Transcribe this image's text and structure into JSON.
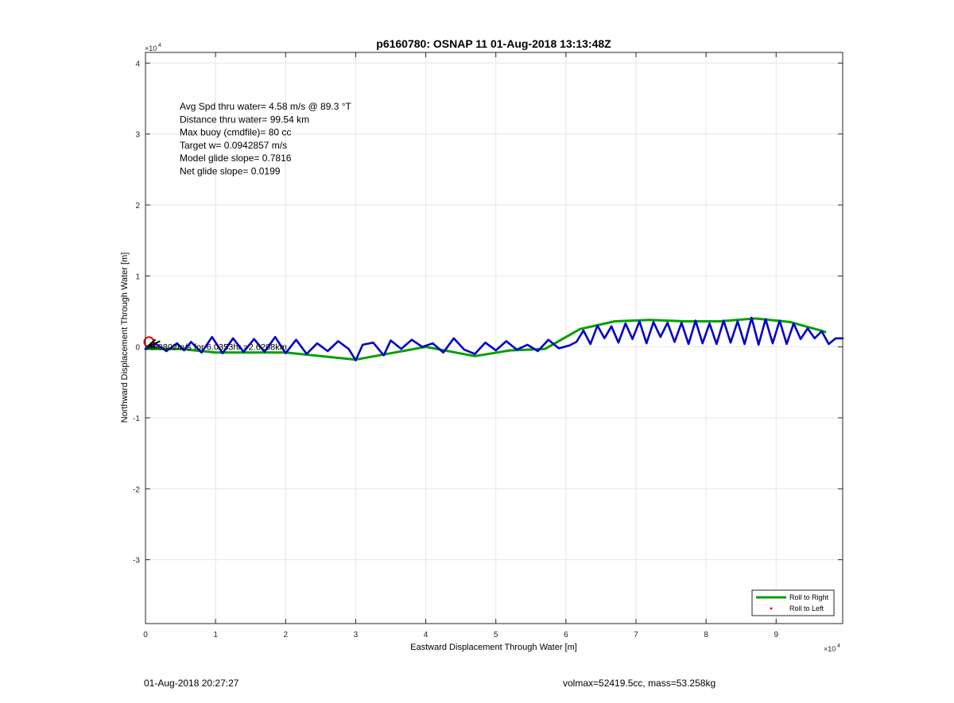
{
  "footer": {
    "left": "01-Aug-2018 20:27:27",
    "right": "volmax=52419.5cc, mass=53.258kg"
  },
  "chart_data": {
    "type": "line",
    "title": "p6160780: OSNAP 11 01-Aug-2018 13:13:48Z",
    "xlabel": "Eastward Displacement Through Water [m]",
    "ylabel": "Northward Displacement Through Water [m]",
    "xlim": [
      0,
      99500
    ],
    "ylim": [
      -39000,
      41500
    ],
    "x_exponent_label": "×10^4",
    "y_exponent_label": "×10^4",
    "xticks": [
      0,
      10000,
      20000,
      30000,
      40000,
      50000,
      60000,
      70000,
      80000,
      90000
    ],
    "xtick_labels": [
      "0",
      "1",
      "2",
      "3",
      "4",
      "5",
      "6",
      "7",
      "8",
      "9"
    ],
    "yticks": [
      -30000,
      -20000,
      -10000,
      0,
      10000,
      20000,
      30000,
      40000
    ],
    "ytick_labels": [
      "-3",
      "-2",
      "-1",
      "0",
      "1",
      "2",
      "3",
      "4"
    ],
    "grid": true,
    "legend_position": "bottom-right",
    "legend": [
      {
        "label": "Roll to Right",
        "color": "#00a000",
        "marker": "line"
      },
      {
        "label": "Roll to Left",
        "color": "#ff0000",
        "marker": "dot"
      }
    ],
    "annotations": [
      "Avg Spd thru water=  4.58 m/s @  89.3 °T",
      "Distance thru water= 99.54 km",
      "Max buoy (cmdfile)= 80 cc",
      "Target w= 0.0942857 m/s",
      "Model glide slope= 0.7816",
      "Net glide slope= 0.0199"
    ],
    "current_label": "0.0802m/s for 6.0353hr =2.6208km",
    "start_marker": {
      "x": 500,
      "y": 700
    },
    "series": [
      {
        "name": "Roll to Right",
        "color": "#00a000",
        "x": [
          0,
          5000,
          10000,
          20000,
          30000,
          40000,
          47000,
          52000,
          57000,
          62000,
          67000,
          72000,
          77000,
          82000,
          87000,
          92000,
          96000,
          97000
        ],
        "y": [
          -300,
          -300,
          -800,
          -800,
          -1800,
          0,
          -1300,
          -500,
          -300,
          2500,
          3600,
          3800,
          3600,
          3600,
          4000,
          3500,
          2400,
          2100
        ]
      },
      {
        "name": "Trajectory",
        "color": "#0000c8",
        "x": [
          0,
          1500,
          3000,
          4500,
          5500,
          6500,
          8000,
          9500,
          11000,
          12500,
          14000,
          15500,
          17000,
          18500,
          20000,
          21500,
          23000,
          24500,
          26000,
          27500,
          29000,
          30000,
          31000,
          32500,
          34000,
          35000,
          36500,
          38000,
          39500,
          41000,
          42500,
          44000,
          45500,
          47000,
          48500,
          50000,
          51500,
          53000,
          54500,
          56000,
          57500,
          59000,
          60500,
          61500,
          62500,
          63500,
          64500,
          65500,
          66500,
          67500,
          68500,
          69500,
          70500,
          71500,
          72500,
          73500,
          74500,
          75500,
          76500,
          77500,
          78500,
          79500,
          80500,
          81500,
          82500,
          83500,
          84500,
          85500,
          86500,
          87500,
          88500,
          89500,
          90500,
          91500,
          92500,
          93500,
          94500,
          95500,
          96500,
          97500,
          98500,
          99500
        ],
        "y": [
          -300,
          400,
          -600,
          500,
          -500,
          700,
          -800,
          1400,
          -900,
          1200,
          -700,
          1100,
          -700,
          1400,
          -900,
          1000,
          -1000,
          500,
          -600,
          800,
          -300,
          -1900,
          300,
          600,
          -1200,
          900,
          -300,
          1000,
          0,
          500,
          -800,
          1200,
          -400,
          -1000,
          600,
          -500,
          800,
          -400,
          300,
          -600,
          1000,
          -200,
          200,
          700,
          2300,
          400,
          3000,
          1200,
          2900,
          600,
          3300,
          1100,
          3600,
          500,
          3500,
          1400,
          3400,
          700,
          3400,
          400,
          3700,
          500,
          3300,
          400,
          3700,
          600,
          3600,
          400,
          4100,
          300,
          3900,
          500,
          3700,
          400,
          3300,
          1100,
          2600,
          1200,
          2200,
          400,
          1200,
          1200
        ]
      }
    ]
  }
}
